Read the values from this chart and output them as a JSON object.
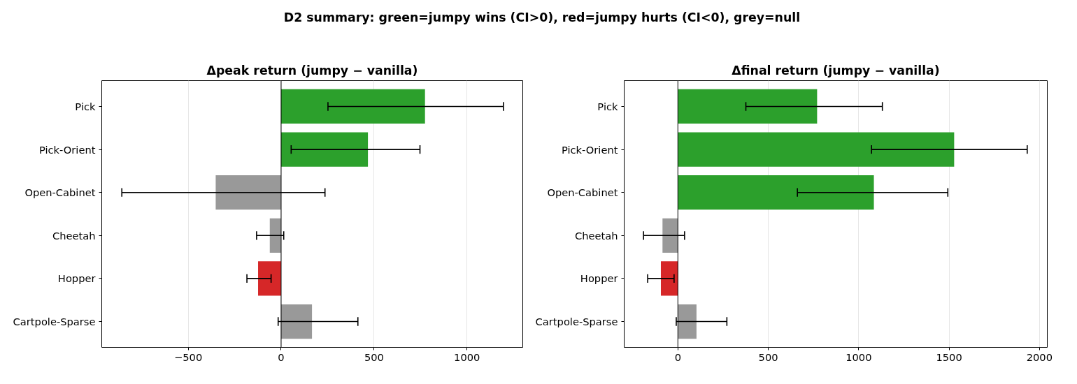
{
  "chart_data": [
    {
      "type": "bar",
      "orientation": "horizontal",
      "title": "Δpeak return (jumpy − vanilla)",
      "annotations": [
        "D2 summary: green=jumpy wins (CI>0), red=jumpy hurts (CI<0), grey=null"
      ],
      "categories": [
        "Pick",
        "Pick-Orient",
        "Open-Cabinet",
        "Cheetah",
        "Hopper",
        "Cartpole-Sparse"
      ],
      "values": [
        774,
        467,
        -352,
        -61,
        -124,
        166
      ],
      "colors": [
        "#2ca02c",
        "#2ca02c",
        "#999999",
        "#999999",
        "#d62728",
        "#999999"
      ],
      "errors": [
        [
          252,
          1196
        ],
        [
          54,
          747
        ],
        [
          -857,
          236
        ],
        [
          -132,
          14
        ],
        [
          -184,
          -54
        ],
        [
          -16,
          413
        ]
      ],
      "xlim": [
        -965,
        1300
      ],
      "xticks": [
        {
          "value": -500,
          "label": "−500"
        },
        0,
        500,
        1000
      ],
      "ref_lines": [
        {
          "axis": "x",
          "value": 0,
          "color": "#000000"
        }
      ],
      "grid": "x"
    },
    {
      "type": "bar",
      "orientation": "horizontal",
      "title": "Δfinal return (jumpy − vanilla)",
      "categories": [
        "Pick",
        "Pick-Orient",
        "Open-Cabinet",
        "Cheetah",
        "Hopper",
        "Cartpole-Sparse"
      ],
      "values": [
        770,
        1528,
        1084,
        -85,
        -94,
        103
      ],
      "colors": [
        "#2ca02c",
        "#2ca02c",
        "#2ca02c",
        "#999999",
        "#d62728",
        "#999999"
      ],
      "errors": [
        [
          376,
          1131
        ],
        [
          1071,
          1932
        ],
        [
          661,
          1493
        ],
        [
          -190,
          37
        ],
        [
          -167,
          -21
        ],
        [
          -9,
          271
        ]
      ],
      "xlim": [
        -297,
        2043
      ],
      "xticks": [
        0,
        500,
        1000,
        1500,
        2000
      ],
      "ref_lines": [
        {
          "axis": "x",
          "value": 0,
          "color": "#000000"
        }
      ],
      "grid": "x"
    }
  ]
}
